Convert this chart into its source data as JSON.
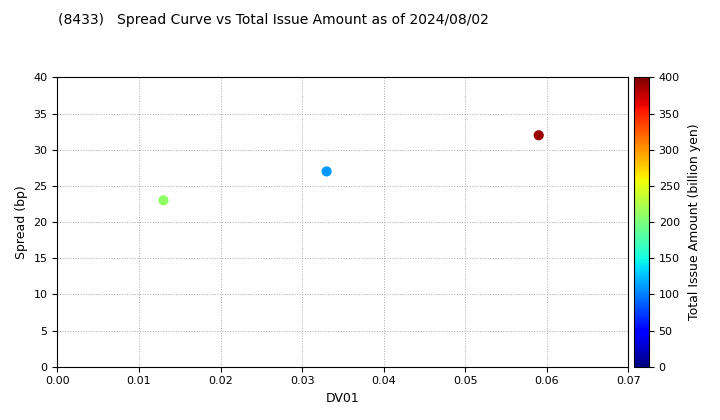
{
  "title": "(8433)   Spread Curve vs Total Issue Amount as of 2024/08/02",
  "xlabel": "DV01",
  "ylabel": "Spread (bp)",
  "colorbar_label": "Total Issue Amount (billion yen)",
  "xlim": [
    0.0,
    0.07
  ],
  "ylim": [
    0,
    40
  ],
  "xticks": [
    0.0,
    0.01,
    0.02,
    0.03,
    0.04,
    0.05,
    0.06,
    0.07
  ],
  "yticks": [
    0,
    5,
    10,
    15,
    20,
    25,
    30,
    35,
    40
  ],
  "colorbar_min": 0,
  "colorbar_max": 400,
  "colorbar_ticks": [
    0,
    50,
    100,
    150,
    200,
    250,
    300,
    350,
    400
  ],
  "points": [
    {
      "dv01": 0.013,
      "spread": 23,
      "amount": 210
    },
    {
      "dv01": 0.033,
      "spread": 27,
      "amount": 110
    },
    {
      "dv01": 0.059,
      "spread": 32,
      "amount": 390
    }
  ],
  "marker_size": 40,
  "background_color": "#ffffff",
  "grid_color": "#aaaaaa",
  "title_fontsize": 10,
  "axis_fontsize": 9,
  "tick_fontsize": 8,
  "colorbar_label_fontsize": 9
}
